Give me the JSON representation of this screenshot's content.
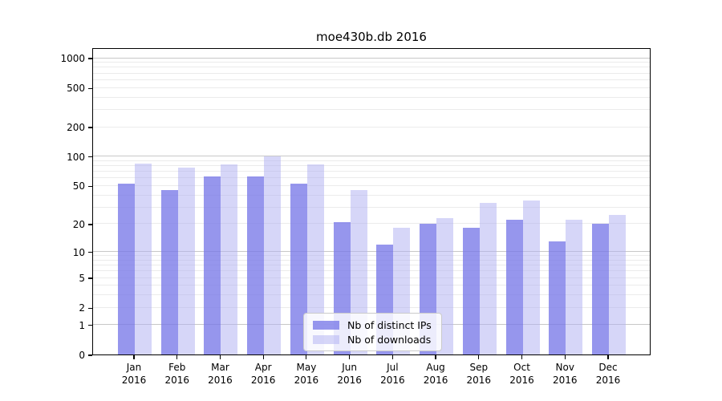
{
  "chart_data": {
    "type": "bar",
    "title": "moe430b.db 2016",
    "y_scale": "log(value+1)",
    "categories": [
      "Jan",
      "Feb",
      "Mar",
      "Apr",
      "May",
      "Jun",
      "Jul",
      "Aug",
      "Sep",
      "Oct",
      "Nov",
      "Dec"
    ],
    "year": "2016",
    "series": [
      {
        "name": "Nb of distinct IPs",
        "color": "#9797ec",
        "fill": "rgba(120,120,232,0.78)",
        "values": [
          52,
          45,
          62,
          62,
          52,
          21,
          12,
          20,
          18,
          22,
          13,
          20
        ]
      },
      {
        "name": "Nb of downloads",
        "color": "#d9d9f8",
        "fill": "rgba(177,177,241,0.52)",
        "values": [
          85,
          77,
          82,
          100,
          82,
          45,
          18,
          23,
          33,
          35,
          22,
          25
        ]
      }
    ],
    "y_ticks": [
      1000,
      500,
      200,
      100,
      50,
      20,
      10,
      5,
      2,
      1,
      0
    ],
    "ylim": [
      0,
      1276
    ],
    "grid": {
      "major": [
        1,
        10,
        100,
        1000
      ],
      "minor": "log sub-decades 2-9",
      "major_color": "#c8c8c8",
      "minor_color": "#ebebeb"
    },
    "legend": {
      "position": "lower center"
    }
  }
}
